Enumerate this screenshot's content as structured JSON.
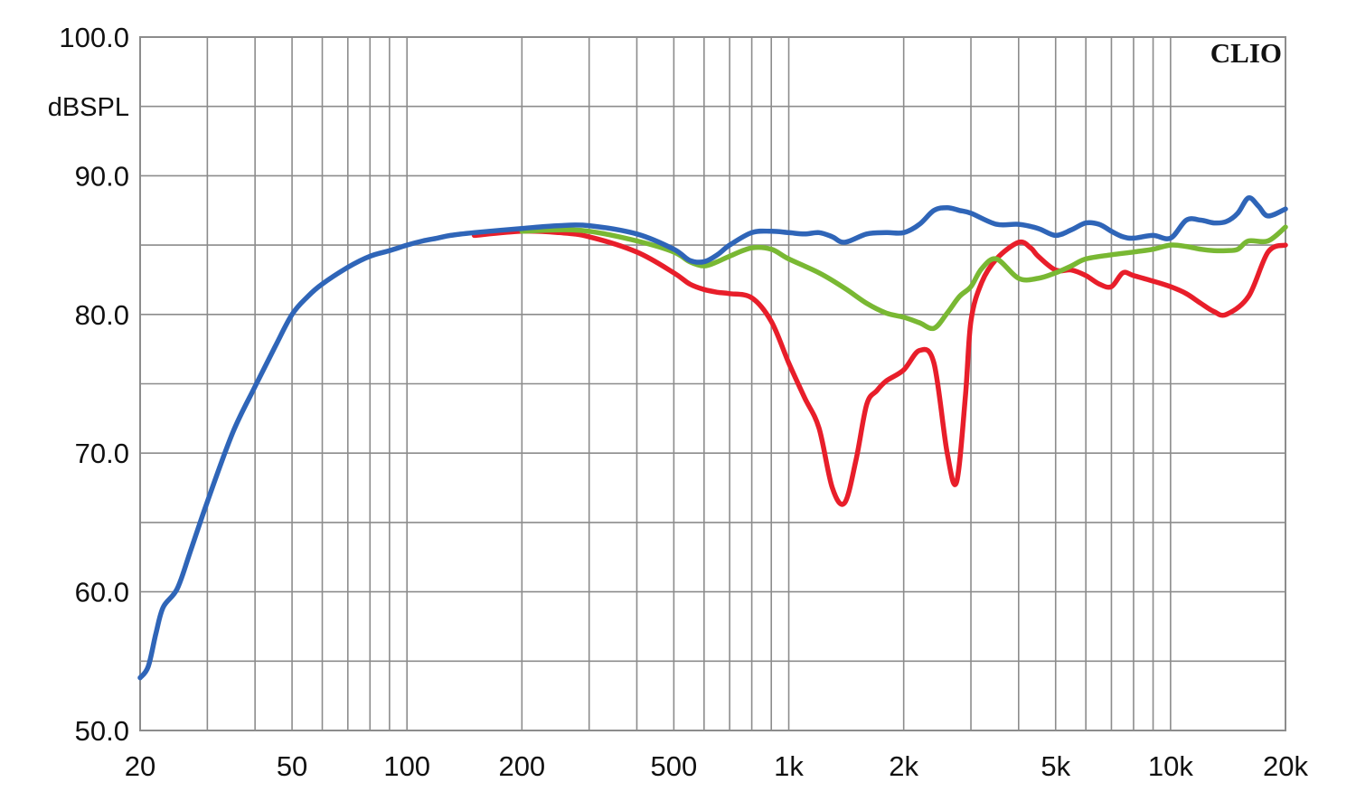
{
  "chart_data": {
    "type": "line",
    "brand": "CLIO",
    "ylabel": "dBSPL",
    "xscale": "log",
    "xlim": [
      20,
      20000
    ],
    "ylim": [
      50,
      100
    ],
    "grid": true,
    "y_ticks": [
      {
        "value": 100,
        "label": "100.0"
      },
      {
        "value": 90,
        "label": "90.0"
      },
      {
        "value": 80,
        "label": "80.0"
      },
      {
        "value": 70,
        "label": "70.0"
      },
      {
        "value": 60,
        "label": "60.0"
      },
      {
        "value": 50,
        "label": "50.0"
      }
    ],
    "x_ticks": [
      {
        "value": 20,
        "label": "20"
      },
      {
        "value": 50,
        "label": "50"
      },
      {
        "value": 100,
        "label": "100"
      },
      {
        "value": 200,
        "label": "200"
      },
      {
        "value": 500,
        "label": "500"
      },
      {
        "value": 1000,
        "label": "1k"
      },
      {
        "value": 2000,
        "label": "2k"
      },
      {
        "value": 5000,
        "label": "5k"
      },
      {
        "value": 10000,
        "label": "10k"
      },
      {
        "value": 20000,
        "label": "20k"
      }
    ],
    "series": [
      {
        "color": "#e81e2a",
        "x": [
          150,
          200,
          250,
          300,
          400,
          500,
          550,
          600,
          650,
          700,
          800,
          900,
          1000,
          1100,
          1200,
          1300,
          1400,
          1500,
          1600,
          1700,
          1800,
          2000,
          2200,
          2400,
          2600,
          2750,
          2900,
          3000,
          3200,
          3500,
          4000,
          4300,
          4500,
          5000,
          5500,
          6000,
          6500,
          7000,
          7500,
          8000,
          9000,
          10000,
          11000,
          12000,
          13000,
          14000,
          16000,
          18000,
          20000
        ],
        "y": [
          85.7,
          86.0,
          85.9,
          85.6,
          84.5,
          83.0,
          82.2,
          81.8,
          81.6,
          81.5,
          81.2,
          79.5,
          76.5,
          74.0,
          71.8,
          67.5,
          66.4,
          69.5,
          73.5,
          74.5,
          75.2,
          76.0,
          77.4,
          76.5,
          70.0,
          67.9,
          74.0,
          79.5,
          82.3,
          84.0,
          85.2,
          84.8,
          84.2,
          83.2,
          83.2,
          82.8,
          82.2,
          82.0,
          83.0,
          82.8,
          82.4,
          82.0,
          81.5,
          80.8,
          80.2,
          80.0,
          81.3,
          84.5,
          85.0
        ]
      },
      {
        "color": "#79b833",
        "x": [
          200,
          250,
          300,
          400,
          500,
          550,
          600,
          650,
          700,
          800,
          900,
          1000,
          1200,
          1400,
          1600,
          1800,
          2000,
          2200,
          2400,
          2600,
          2800,
          3000,
          3200,
          3500,
          4000,
          4500,
          5000,
          5500,
          6000,
          7000,
          8000,
          9000,
          10000,
          11000,
          12000,
          13000,
          14000,
          15000,
          16000,
          18000,
          20000
        ],
        "y": [
          86.0,
          86.1,
          86.0,
          85.3,
          84.5,
          83.8,
          83.5,
          83.8,
          84.2,
          84.8,
          84.7,
          84.0,
          83.0,
          81.9,
          80.8,
          80.1,
          79.8,
          79.4,
          79.0,
          80.1,
          81.3,
          82.0,
          83.3,
          84.0,
          82.6,
          82.6,
          83.0,
          83.5,
          84.0,
          84.3,
          84.5,
          84.7,
          85.0,
          84.9,
          84.7,
          84.6,
          84.6,
          84.7,
          85.3,
          85.3,
          86.3
        ]
      },
      {
        "color": "#2f65b8",
        "x": [
          20,
          21,
          22,
          23,
          25,
          27,
          30,
          35,
          40,
          45,
          50,
          55,
          60,
          70,
          80,
          90,
          100,
          110,
          120,
          130,
          150,
          200,
          250,
          300,
          400,
          500,
          550,
          600,
          650,
          700,
          800,
          900,
          1000,
          1100,
          1200,
          1300,
          1400,
          1600,
          1800,
          2000,
          2200,
          2400,
          2600,
          2800,
          3000,
          3500,
          4000,
          4500,
          5000,
          5500,
          6000,
          6500,
          7000,
          7500,
          8000,
          9000,
          10000,
          11000,
          12000,
          13000,
          14000,
          15000,
          16000,
          17000,
          18000,
          20000
        ],
        "y": [
          53.8,
          54.6,
          57.0,
          58.9,
          60.2,
          62.8,
          66.5,
          71.5,
          74.8,
          77.6,
          80.0,
          81.3,
          82.2,
          83.4,
          84.2,
          84.6,
          85.0,
          85.3,
          85.5,
          85.7,
          85.9,
          86.2,
          86.4,
          86.4,
          85.8,
          84.7,
          83.9,
          83.8,
          84.3,
          85.0,
          85.9,
          86.0,
          85.9,
          85.8,
          85.9,
          85.6,
          85.2,
          85.8,
          85.9,
          85.9,
          86.5,
          87.5,
          87.7,
          87.5,
          87.3,
          86.5,
          86.5,
          86.2,
          85.7,
          86.1,
          86.6,
          86.5,
          86.0,
          85.6,
          85.5,
          85.7,
          85.5,
          86.8,
          86.8,
          86.6,
          86.7,
          87.3,
          88.4,
          87.8,
          87.1,
          87.6
        ]
      }
    ]
  }
}
